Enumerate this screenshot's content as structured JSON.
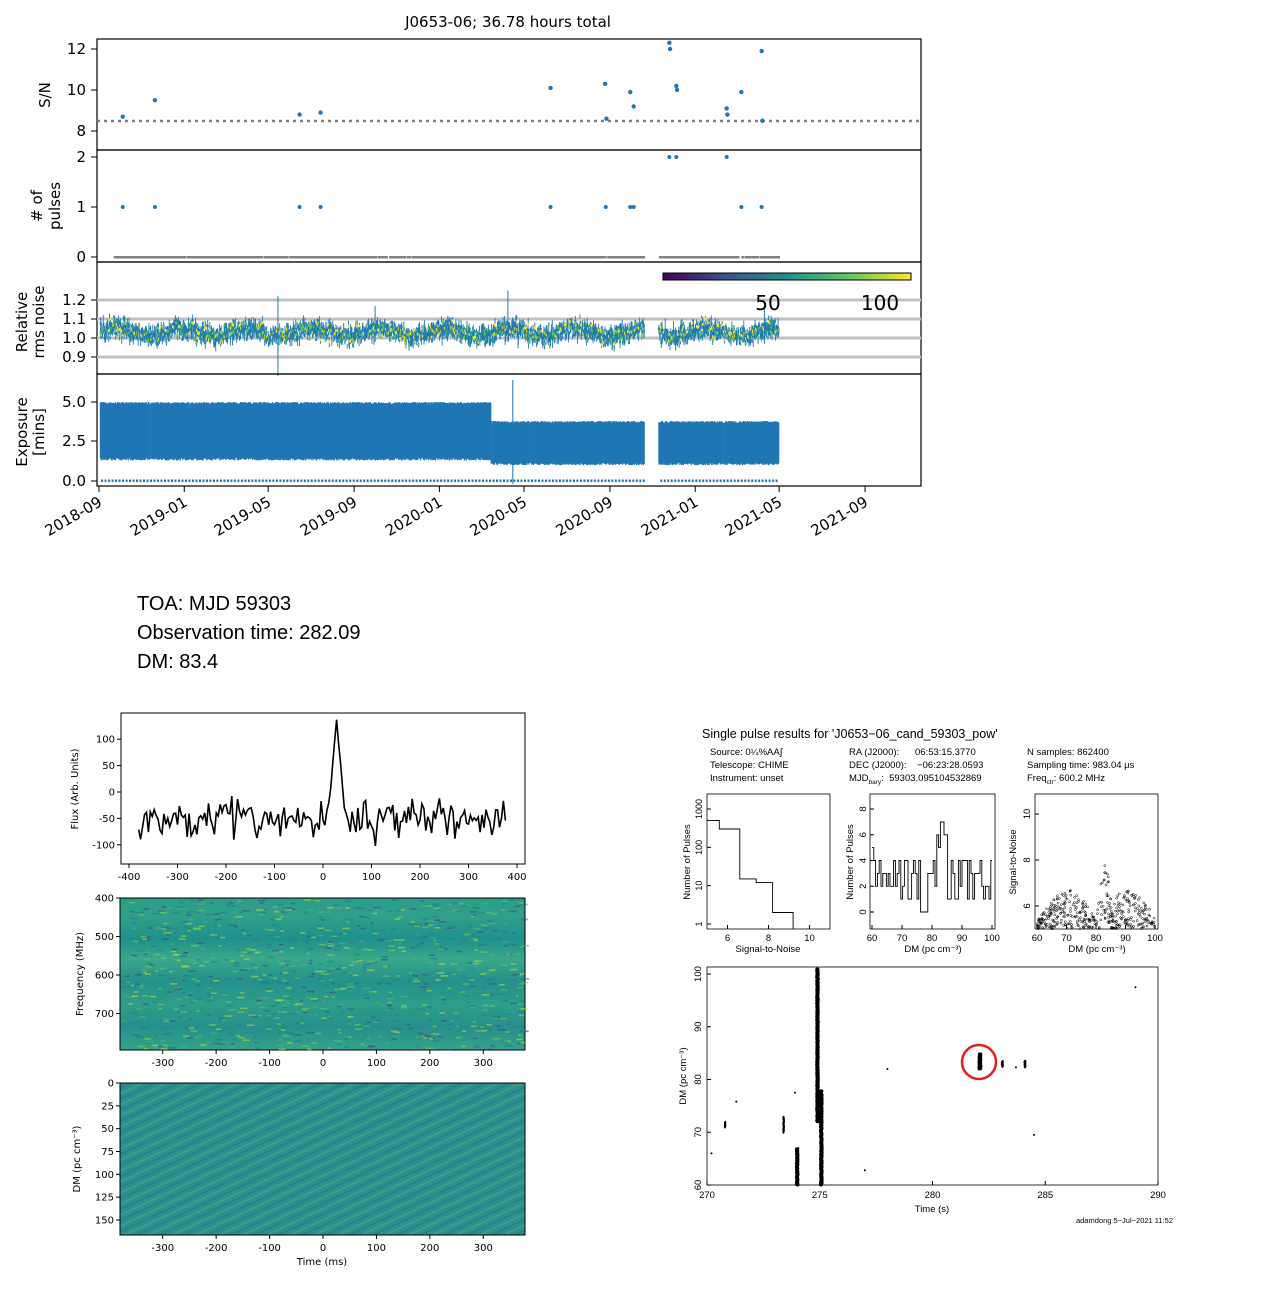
{
  "timeline": {
    "title": "J0653-06; 36.78 hours total",
    "date_ticks": [
      "2018-09",
      "2019-01",
      "2019-05",
      "2019-09",
      "2020-01",
      "2020-05",
      "2020-09",
      "2021-01",
      "2021-05",
      "2021-09"
    ],
    "date_ticks_values": [
      "2018-09-01",
      "2019-01-01",
      "2019-05-01",
      "2019-09-01",
      "2020-01-01",
      "2020-05-01",
      "2020-09-01",
      "2021-01-01",
      "2021-05-01",
      "2021-09-01"
    ],
    "xlim": [
      "2018-09-01",
      "2021-11-20"
    ],
    "data_span": [
      "2018-09-01",
      "2021-05-01"
    ],
    "gap": [
      "2020-10-20",
      "2020-11-10"
    ],
    "panels": {
      "sn": {
        "ylabel": "S/N",
        "yticks": [
          "8",
          "10",
          "12"
        ],
        "threshold": 8.5
      },
      "npulses": {
        "ylabel_line1": "# of",
        "ylabel_line2": "pulses",
        "yticks": [
          "0",
          "1",
          "2"
        ]
      },
      "rms": {
        "ylabel_line1": "Relative",
        "ylabel_line2": "rms noise",
        "yticks": [
          "0.9",
          "1.0",
          "1.1",
          "1.2"
        ],
        "gridlines": [
          0.9,
          1.0,
          1.1,
          1.2
        ],
        "colorbar_ticks": [
          "50",
          "100"
        ],
        "colorbar_range": [
          0,
          120
        ]
      },
      "exposure": {
        "ylabel_line1": "Exposure",
        "ylabel_line2": "[mins]",
        "yticks": [
          "0.0",
          "2.5",
          "5.0"
        ]
      }
    },
    "accent_color": "#1f77b4",
    "threshold_color": "#808080"
  },
  "chart_data": [
    {
      "type": "scatter",
      "panel": "S/N",
      "x": [
        "2018-10-05",
        "2018-11-20",
        "2019-06-15",
        "2019-07-15",
        "2020-06-08",
        "2020-08-25",
        "2020-08-27",
        "2020-09-30",
        "2020-10-05",
        "2020-11-25",
        "2020-11-26",
        "2020-12-05",
        "2020-12-06",
        "2021-02-15",
        "2021-02-16",
        "2021-03-08",
        "2021-04-06",
        "2021-04-07"
      ],
      "y": [
        8.7,
        9.5,
        8.8,
        8.9,
        10.1,
        10.3,
        8.6,
        9.9,
        9.2,
        12.3,
        12.0,
        10.2,
        10.0,
        9.1,
        8.8,
        9.9,
        11.9,
        8.5
      ],
      "xlabel": "",
      "ylabel": "S/N",
      "ylim": [
        7.7,
        12.6
      ]
    },
    {
      "type": "scatter",
      "panel": "# of pulses",
      "x": [
        "2018-10-05",
        "2018-11-20",
        "2019-06-15",
        "2019-07-15",
        "2020-06-08",
        "2020-08-26",
        "2020-09-30",
        "2020-10-05",
        "2020-11-25",
        "2020-12-05",
        "2021-02-15",
        "2021-03-08",
        "2021-04-06"
      ],
      "y": [
        1,
        1,
        1,
        1,
        1,
        1,
        1,
        1,
        2,
        2,
        2,
        1,
        1
      ],
      "ylabel": "# of pulses",
      "ylim": [
        -0.1,
        2.1
      ]
    },
    {
      "type": "line",
      "panel": "Relative rms noise",
      "description_values": "noise ratio fluctuating between about 0.95 and 1.15 per day",
      "ylabel": "Relative rms noise",
      "ylim": [
        0.8,
        1.4
      ]
    },
    {
      "type": "bar",
      "panel": "Exposure [mins]",
      "segments": [
        {
          "from": "2018-09-01",
          "to": "2020-03-15",
          "low": 1.3,
          "high": 5.0
        },
        {
          "from": "2020-03-15",
          "to": "2021-05-01",
          "low": 1.0,
          "high": 3.8
        }
      ],
      "ylabel": "Exposure [mins]",
      "ylim": [
        -0.3,
        6.5
      ]
    },
    {
      "type": "line",
      "title": "",
      "xlabel": "",
      "ylabel": "Flux (Arb. Units)",
      "xlim": [
        -400,
        400
      ],
      "ylim": [
        -120,
        140
      ],
      "xticks": [
        "-400",
        "-300",
        "-200",
        "-100",
        "0",
        "100",
        "200",
        "300",
        "400"
      ],
      "yticks": [
        "100",
        "50",
        "0",
        "-50",
        "-100"
      ],
      "peak": {
        "x": 28,
        "y": 137
      }
    },
    {
      "type": "heatmap",
      "ylabel": "Frequency (MHz)",
      "xticks": [
        "-300",
        "-200",
        "-100",
        "0",
        "100",
        "200",
        "300"
      ],
      "yticks": [
        "400",
        "500",
        "600",
        "700"
      ]
    },
    {
      "type": "heatmap",
      "xlabel": "Time (ms)",
      "ylabel": "DM (pc cm⁻³)",
      "xticks": [
        "-300",
        "-200",
        "-100",
        "0",
        "100",
        "200",
        "300"
      ],
      "yticks": [
        "0",
        "25",
        "50",
        "75",
        "100",
        "125",
        "150"
      ]
    },
    {
      "type": "bar",
      "xlabel": "Signal-to-Noise",
      "ylabel": "Number of Pulses",
      "xticks": [
        "6",
        "8",
        "10"
      ],
      "yticks": [
        "1",
        "10",
        "100",
        "1000"
      ],
      "steps": [
        [
          5.0,
          500
        ],
        [
          5.6,
          300
        ],
        [
          6.6,
          15
        ],
        [
          7.4,
          12
        ],
        [
          8.2,
          2
        ],
        [
          9.2,
          1
        ]
      ]
    },
    {
      "type": "bar",
      "xlabel": "DM (pc cm⁻³)",
      "ylabel": "Number of Pulses",
      "xticks": [
        "60",
        "70",
        "80",
        "90",
        "100"
      ],
      "yticks": [
        "0",
        "2",
        "4",
        "6",
        "8"
      ]
    },
    {
      "type": "scatter",
      "xlabel": "DM (pc cm⁻³)",
      "ylabel": "Signal-to-Noise",
      "xticks": [
        "60",
        "70",
        "80",
        "90",
        "100"
      ],
      "yticks": [
        "6",
        "8",
        "10"
      ]
    },
    {
      "type": "scatter",
      "xlabel": "Time (s)",
      "ylabel": "DM (pc cm⁻³)",
      "xlim": [
        270,
        290
      ],
      "ylim": [
        60,
        101
      ],
      "xticks": [
        "270",
        "275",
        "280",
        "285",
        "290"
      ],
      "yticks": [
        "60",
        "70",
        "80",
        "90",
        "100"
      ],
      "highlight": {
        "x": 282.1,
        "y": 83.4
      }
    }
  ],
  "info": {
    "toa": "TOA: MJD 59303",
    "obs_time": "Observation time: 282.09",
    "dm": "DM: 83.4"
  },
  "spr": {
    "title": "Single pulse results for 'J0653−06_cand_59303_pow'",
    "source": "Source: 0¼%AA∫",
    "telescope": "Telescope: CHIME",
    "instrument": "Instrument: unset",
    "ra": "RA (J2000):      06:53:15.3770",
    "dec": "DEC (J2000):    −06:23:28.0593",
    "mjd_label": "MJD",
    "mjd_sub": "bary",
    "mjd_value": ":  59303.095104532869",
    "nsamples": "N samples: 862400",
    "sampling": "Sampling time: 983.04 μs",
    "freq_label": "Freq",
    "freq_sub": "ctr",
    "freq_value": ": 600.2 MHz",
    "footer": "adamdong   5−Jul−2021 11:52"
  }
}
